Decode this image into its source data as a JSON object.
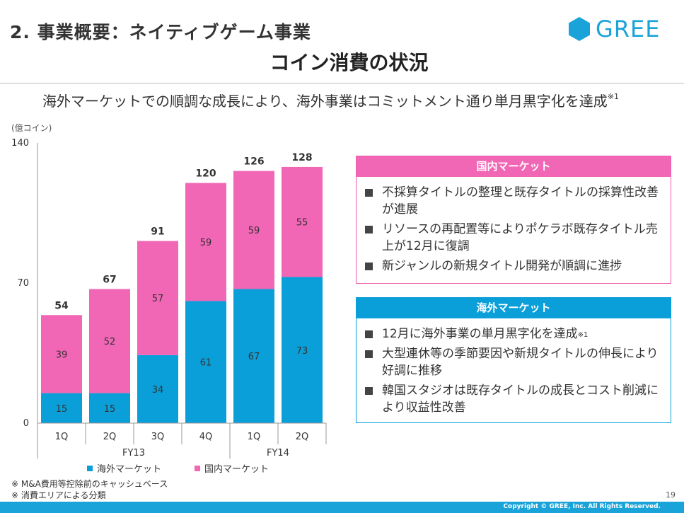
{
  "header": {
    "title": "2. 事業概要：ネイティブゲーム事業",
    "subtitle": "コイン消費の状況",
    "logo_text": "GREE",
    "logo_color": "#1aa3d8"
  },
  "headline": {
    "text": "海外マーケットでの順調な成長により、海外事業はコミットメント通り単月黒字化を達成",
    "mark": "※1"
  },
  "unit_label": "(億コイン)",
  "chart_data": {
    "type": "bar",
    "stacked": true,
    "categories": [
      "1Q",
      "2Q",
      "3Q",
      "4Q",
      "1Q",
      "2Q"
    ],
    "groups": [
      {
        "label": "FY13",
        "count": 4
      },
      {
        "label": "FY14",
        "count": 2
      }
    ],
    "series": [
      {
        "name": "海外マーケット",
        "color": "#0a9fd8",
        "values": [
          15,
          15,
          34,
          61,
          67,
          73
        ]
      },
      {
        "name": "国内マーケット",
        "color": "#f266b6",
        "values": [
          39,
          52,
          57,
          59,
          59,
          55
        ]
      }
    ],
    "totals": [
      54,
      67,
      91,
      120,
      126,
      128
    ],
    "ylim": [
      0,
      140
    ],
    "yticks": [
      0,
      70,
      140
    ],
    "legend_position": "bottom"
  },
  "domestic_box": {
    "title": "国内マーケット",
    "color": "#f266b6",
    "items": [
      "不採算タイトルの整理と既存タイトルの採算性改善が進展",
      "リソースの再配置等によりポケラボ既存タイトル売上が12月に復調",
      "新ジャンルの新規タイトル開発が順調に進捗"
    ]
  },
  "overseas_box": {
    "title": "海外マーケット",
    "color": "#0a9fd8",
    "items": [
      {
        "text": "12月に海外事業の単月黒字化を達成",
        "mark": "※1"
      },
      {
        "text": "大型連休等の季節要因や新規タイトルの伸長により好調に推移",
        "mark": ""
      },
      {
        "text": "韓国スタジオは既存タイトルの成長とコスト削減により収益性改善",
        "mark": ""
      }
    ]
  },
  "notes": [
    "※ M&A費用等控除前のキャッシュベース",
    "※ 消費エリアによる分類"
  ],
  "page_number": "19",
  "copyright": "Copyright © GREE, Inc. All Rights Reserved."
}
